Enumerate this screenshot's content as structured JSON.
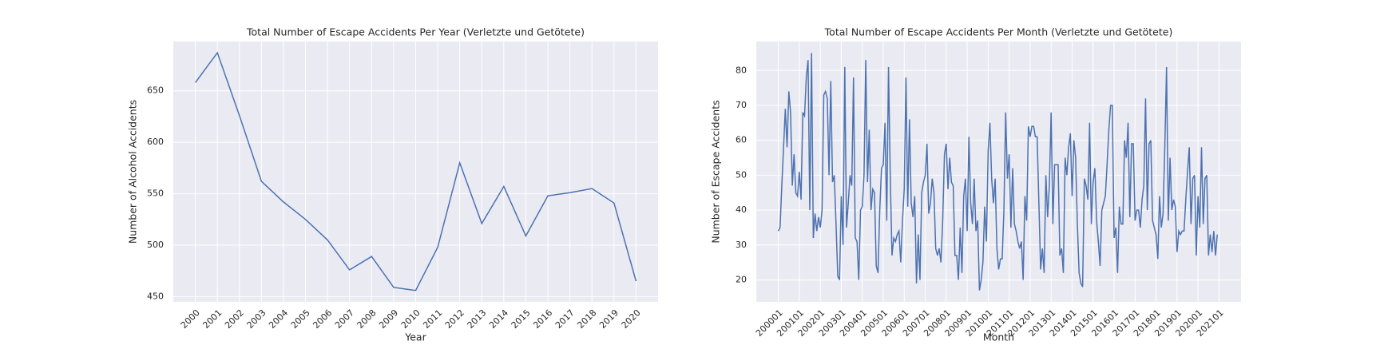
{
  "chart_data": [
    {
      "type": "line",
      "title": "Total Number of Escape Accidents Per Year (Verletzte und Getötete)",
      "xlabel": "Year",
      "ylabel": "Number of Alcohol Accidents",
      "x": [
        2000,
        2001,
        2002,
        2003,
        2004,
        2005,
        2006,
        2007,
        2008,
        2009,
        2010,
        2011,
        2012,
        2013,
        2014,
        2015,
        2016,
        2017,
        2018,
        2019,
        2020
      ],
      "values": [
        658,
        687,
        626,
        562,
        542,
        525,
        505,
        476,
        489,
        459,
        456,
        498,
        580,
        521,
        557,
        509,
        548,
        551,
        555,
        541,
        465
      ],
      "color": "#4c72b0",
      "xlim": [
        1999,
        2021
      ],
      "xticks": [
        2000,
        2001,
        2002,
        2003,
        2004,
        2005,
        2006,
        2007,
        2008,
        2009,
        2010,
        2011,
        2012,
        2013,
        2014,
        2015,
        2016,
        2017,
        2018,
        2019,
        2020
      ],
      "ylim": [
        444.9,
        697.9
      ],
      "yticks": [
        450,
        500,
        550,
        600,
        650
      ],
      "grid": true
    },
    {
      "type": "line",
      "title": "Total Number of Escape Accidents Per Month (Verletzte und Getötete)",
      "xlabel": "Month",
      "ylabel": "Number of Escape Accidents",
      "values": [
        34,
        35,
        47,
        58,
        69,
        58,
        74,
        68,
        47,
        56,
        45,
        44,
        51,
        43,
        68,
        67,
        78,
        83,
        40,
        85,
        32,
        39,
        34,
        38,
        35,
        40,
        73,
        74,
        72,
        50,
        77,
        48,
        50,
        36,
        21,
        20,
        44,
        30,
        81,
        35,
        42,
        50,
        47,
        78,
        32,
        31,
        20,
        40,
        41,
        50,
        83,
        48,
        63,
        40,
        46,
        45,
        24,
        22,
        40,
        52,
        53,
        65,
        37,
        81,
        50,
        27,
        32,
        31,
        33,
        34,
        25,
        37,
        46,
        78,
        41,
        66,
        42,
        38,
        44,
        19,
        33,
        20,
        45,
        48,
        50,
        59,
        39,
        42,
        49,
        45,
        29,
        27,
        29,
        25,
        37,
        56,
        59,
        46,
        55,
        48,
        47,
        27,
        27,
        20,
        35,
        22,
        44,
        49,
        34,
        61,
        42,
        36,
        49,
        34,
        37,
        17,
        20,
        25,
        41,
        31,
        57,
        65,
        49,
        42,
        49,
        29,
        23,
        26,
        26,
        40,
        68,
        49,
        56,
        35,
        52,
        36,
        34,
        31,
        29,
        31,
        20,
        44,
        37,
        64,
        61,
        64,
        64,
        61,
        61,
        42,
        23,
        29,
        22,
        50,
        38,
        47,
        68,
        36,
        53,
        53,
        53,
        27,
        29,
        22,
        55,
        50,
        58,
        62,
        44,
        60,
        55,
        36,
        22,
        19,
        18,
        49,
        47,
        43,
        65,
        36,
        48,
        52,
        37,
        31,
        24,
        40,
        42,
        44,
        53,
        63,
        70,
        70,
        32,
        35,
        22,
        41,
        36,
        36,
        60,
        55,
        65,
        38,
        59,
        59,
        37,
        40,
        40,
        35,
        43,
        47,
        72,
        40,
        59,
        60,
        37,
        35,
        33,
        26,
        44,
        35,
        39,
        58,
        81,
        37,
        55,
        40,
        43,
        41,
        28,
        34,
        33,
        34,
        34,
        43,
        51,
        58,
        36,
        49,
        50,
        27,
        44,
        35,
        58,
        36,
        49,
        50,
        27,
        33,
        28,
        34,
        27,
        33
      ],
      "color": "#4c72b0",
      "xlim": [
        -12.6,
        264.6
      ],
      "xticks": [
        {
          "value": 0,
          "label": "200001"
        },
        {
          "value": 12,
          "label": "200101"
        },
        {
          "value": 24,
          "label": "200201"
        },
        {
          "value": 36,
          "label": "200301"
        },
        {
          "value": 48,
          "label": "200401"
        },
        {
          "value": 60,
          "label": "200501"
        },
        {
          "value": 72,
          "label": "200601"
        },
        {
          "value": 84,
          "label": "200701"
        },
        {
          "value": 96,
          "label": "200801"
        },
        {
          "value": 108,
          "label": "200901"
        },
        {
          "value": 120,
          "label": "201001"
        },
        {
          "value": 132,
          "label": "201101"
        },
        {
          "value": 144,
          "label": "201201"
        },
        {
          "value": 156,
          "label": "201301"
        },
        {
          "value": 168,
          "label": "201401"
        },
        {
          "value": 180,
          "label": "201501"
        },
        {
          "value": 192,
          "label": "201601"
        },
        {
          "value": 204,
          "label": "201701"
        },
        {
          "value": 216,
          "label": "201801"
        },
        {
          "value": 228,
          "label": "201901"
        },
        {
          "value": 240,
          "label": "202001"
        },
        {
          "value": 252,
          "label": "202101"
        }
      ],
      "ylim": [
        13.7,
        88.3
      ],
      "yticks": [
        20,
        30,
        40,
        50,
        60,
        70,
        80
      ],
      "grid": true
    }
  ]
}
